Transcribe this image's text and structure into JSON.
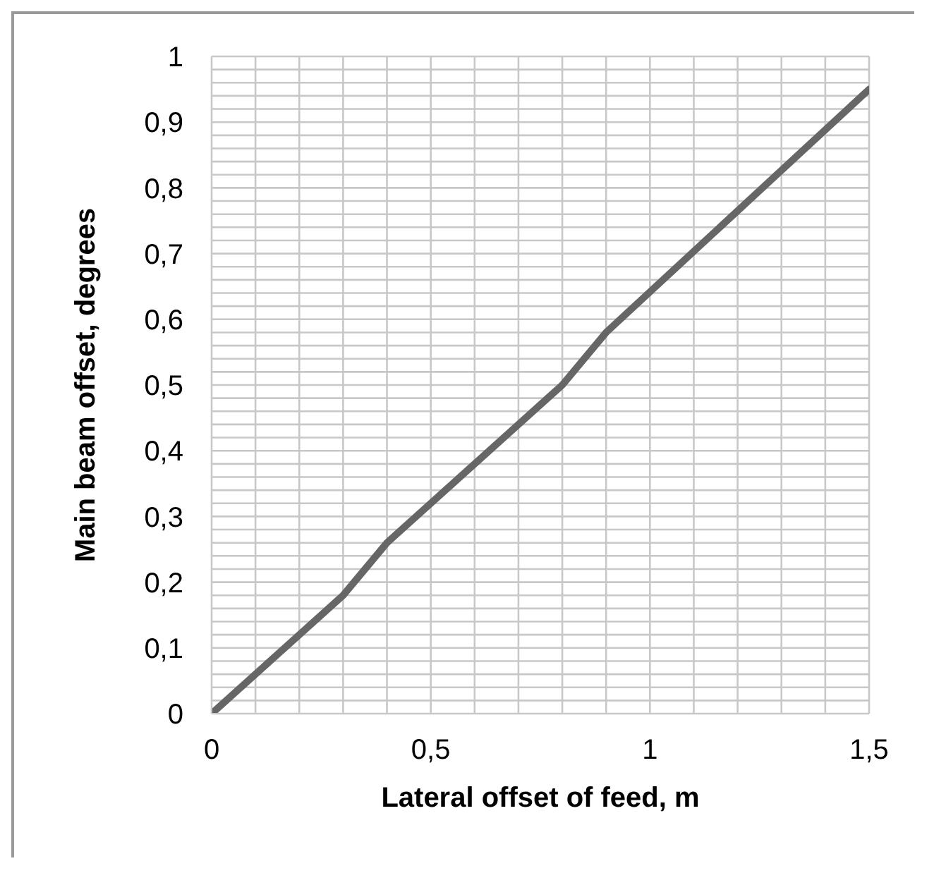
{
  "chart_data": {
    "type": "line",
    "xlabel": "Lateral offset of feed, m",
    "ylabel": "Main beam offset, degrees",
    "x": [
      0,
      0.3,
      0.4,
      0.8,
      0.9,
      1.5
    ],
    "series": [
      {
        "color": "#666666",
        "values": [
          0,
          0.18,
          0.26,
          0.5,
          0.58,
          0.95
        ]
      }
    ],
    "xlim": [
      0,
      1.5
    ],
    "xticks": [
      0,
      {
        "value": 0.1,
        "label": null
      },
      {
        "value": 0.2,
        "label": null
      },
      {
        "value": 0.3,
        "label": null
      },
      {
        "value": 0.4,
        "label": null
      },
      {
        "value": 0.5,
        "label": "0,5"
      },
      {
        "value": 0.6,
        "label": null
      },
      {
        "value": 0.7,
        "label": null
      },
      {
        "value": 0.8,
        "label": null
      },
      {
        "value": 0.9,
        "label": null
      },
      1,
      {
        "value": 1.1,
        "label": null
      },
      {
        "value": 1.2,
        "label": null
      },
      {
        "value": 1.3,
        "label": null
      },
      {
        "value": 1.4,
        "label": null
      },
      {
        "value": 1.5,
        "label": "1,5"
      }
    ],
    "ylim": [
      0,
      1
    ],
    "yticks": [
      0,
      {
        "value": 0.02,
        "label": null
      },
      {
        "value": 0.04,
        "label": null
      },
      {
        "value": 0.06,
        "label": null
      },
      {
        "value": 0.08,
        "label": null
      },
      {
        "value": 0.1,
        "label": "0,1"
      },
      {
        "value": 0.12,
        "label": null
      },
      {
        "value": 0.14,
        "label": null
      },
      {
        "value": 0.16,
        "label": null
      },
      {
        "value": 0.18,
        "label": null
      },
      {
        "value": 0.2,
        "label": "0,2"
      },
      {
        "value": 0.22,
        "label": null
      },
      {
        "value": 0.24,
        "label": null
      },
      {
        "value": 0.26,
        "label": null
      },
      {
        "value": 0.28,
        "label": null
      },
      {
        "value": 0.3,
        "label": "0,3"
      },
      {
        "value": 0.32,
        "label": null
      },
      {
        "value": 0.34,
        "label": null
      },
      {
        "value": 0.36,
        "label": null
      },
      {
        "value": 0.38,
        "label": null
      },
      {
        "value": 0.4,
        "label": "0,4"
      },
      {
        "value": 0.42,
        "label": null
      },
      {
        "value": 0.44,
        "label": null
      },
      {
        "value": 0.46,
        "label": null
      },
      {
        "value": 0.48,
        "label": null
      },
      {
        "value": 0.5,
        "label": "0,5"
      },
      {
        "value": 0.52,
        "label": null
      },
      {
        "value": 0.54,
        "label": null
      },
      {
        "value": 0.56,
        "label": null
      },
      {
        "value": 0.58,
        "label": null
      },
      {
        "value": 0.6,
        "label": "0,6"
      },
      {
        "value": 0.62,
        "label": null
      },
      {
        "value": 0.64,
        "label": null
      },
      {
        "value": 0.66,
        "label": null
      },
      {
        "value": 0.68,
        "label": null
      },
      {
        "value": 0.7,
        "label": "0,7"
      },
      {
        "value": 0.72,
        "label": null
      },
      {
        "value": 0.74,
        "label": null
      },
      {
        "value": 0.76,
        "label": null
      },
      {
        "value": 0.78,
        "label": null
      },
      {
        "value": 0.8,
        "label": "0,8"
      },
      {
        "value": 0.82,
        "label": null
      },
      {
        "value": 0.84,
        "label": null
      },
      {
        "value": 0.86,
        "label": null
      },
      {
        "value": 0.88,
        "label": null
      },
      {
        "value": 0.9,
        "label": "0,9"
      },
      {
        "value": 0.92,
        "label": null
      },
      {
        "value": 0.94,
        "label": null
      },
      {
        "value": 0.96,
        "label": null
      },
      {
        "value": 0.98,
        "label": null
      },
      1
    ],
    "grid": true,
    "marker": "none",
    "line_style": "solid"
  }
}
